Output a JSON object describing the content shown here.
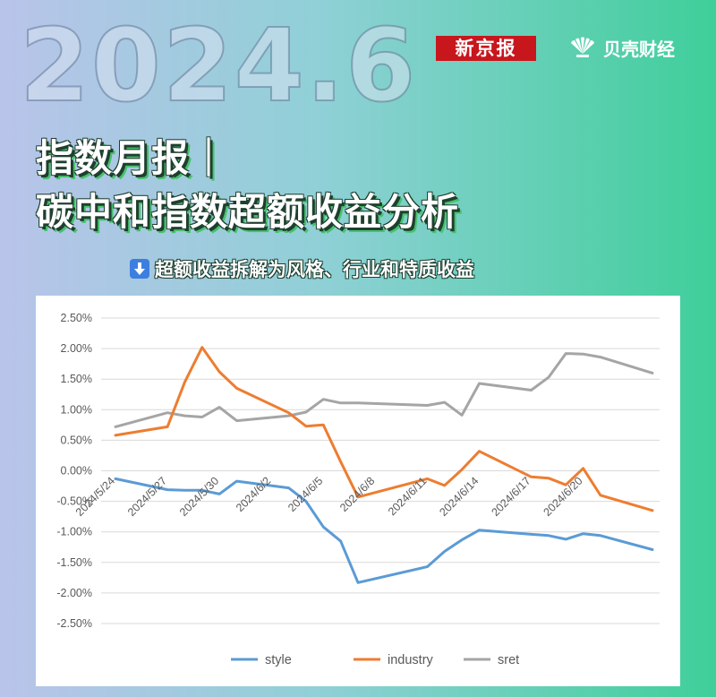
{
  "header": {
    "big_year": "2024.6",
    "logo_xjb": "新京报",
    "logo_bk": "贝壳财经",
    "title_line1": "指数月报｜",
    "title_line2": "碳中和指数超额收益分析",
    "subtitle": "超额收益拆解为风格、行业和特质收益",
    "subtitle_icon": "down-arrow-icon"
  },
  "colors": {
    "style": "#5b9bd5",
    "industry": "#ed7d31",
    "sret": "#a5a5a5",
    "grid": "#d9d9d9",
    "logo_red": "#c8161d"
  },
  "chart_data": {
    "type": "line",
    "y_ticks": [
      "2.50%",
      "2.00%",
      "1.50%",
      "1.00%",
      "0.50%",
      "0.00%",
      "-0.50%",
      "-1.00%",
      "-1.50%",
      "-2.00%",
      "-2.50%"
    ],
    "ylim": [
      -2.5,
      2.5
    ],
    "grid": true,
    "legend_position": "bottom",
    "x_dates": [
      "2024/5/24",
      "2024/5/27",
      "2024/5/28",
      "2024/5/29",
      "2024/5/30",
      "2024/5/31",
      "2024/6/3",
      "2024/6/4",
      "2024/6/5",
      "2024/6/6",
      "2024/6/7",
      "2024/6/11",
      "2024/6/12",
      "2024/6/13",
      "2024/6/14",
      "2024/6/17",
      "2024/6/18",
      "2024/6/19",
      "2024/6/20",
      "2024/6/21",
      "2024/6/24"
    ],
    "x_tick_labels": [
      "2024/5/24",
      "2024/5/27",
      "2024/5/30",
      "2024/6/2",
      "2024/6/5",
      "2024/6/8",
      "2024/6/11",
      "2024/6/14",
      "2024/6/17",
      "2024/6/20"
    ],
    "series": [
      {
        "name": "style",
        "values": [
          -0.13,
          -0.31,
          -0.32,
          -0.32,
          -0.38,
          -0.17,
          -0.28,
          -0.5,
          -0.92,
          -1.15,
          -1.83,
          -1.57,
          -1.32,
          -1.13,
          -0.97,
          -1.04,
          -1.06,
          -1.12,
          -1.03,
          -1.06,
          -1.29
        ]
      },
      {
        "name": "industry",
        "values": [
          0.58,
          0.72,
          1.45,
          2.02,
          1.62,
          1.35,
          0.95,
          0.73,
          0.75,
          0.15,
          -0.43,
          -0.13,
          -0.24,
          0.02,
          0.32,
          -0.1,
          -0.12,
          -0.23,
          0.04,
          -0.4,
          -0.65
        ]
      },
      {
        "name": "sret",
        "values": [
          0.72,
          0.95,
          0.9,
          0.88,
          1.04,
          0.82,
          0.9,
          0.96,
          1.17,
          1.11,
          1.11,
          1.07,
          1.12,
          0.91,
          1.43,
          1.32,
          1.53,
          1.92,
          1.91,
          1.86,
          1.6
        ]
      }
    ]
  }
}
